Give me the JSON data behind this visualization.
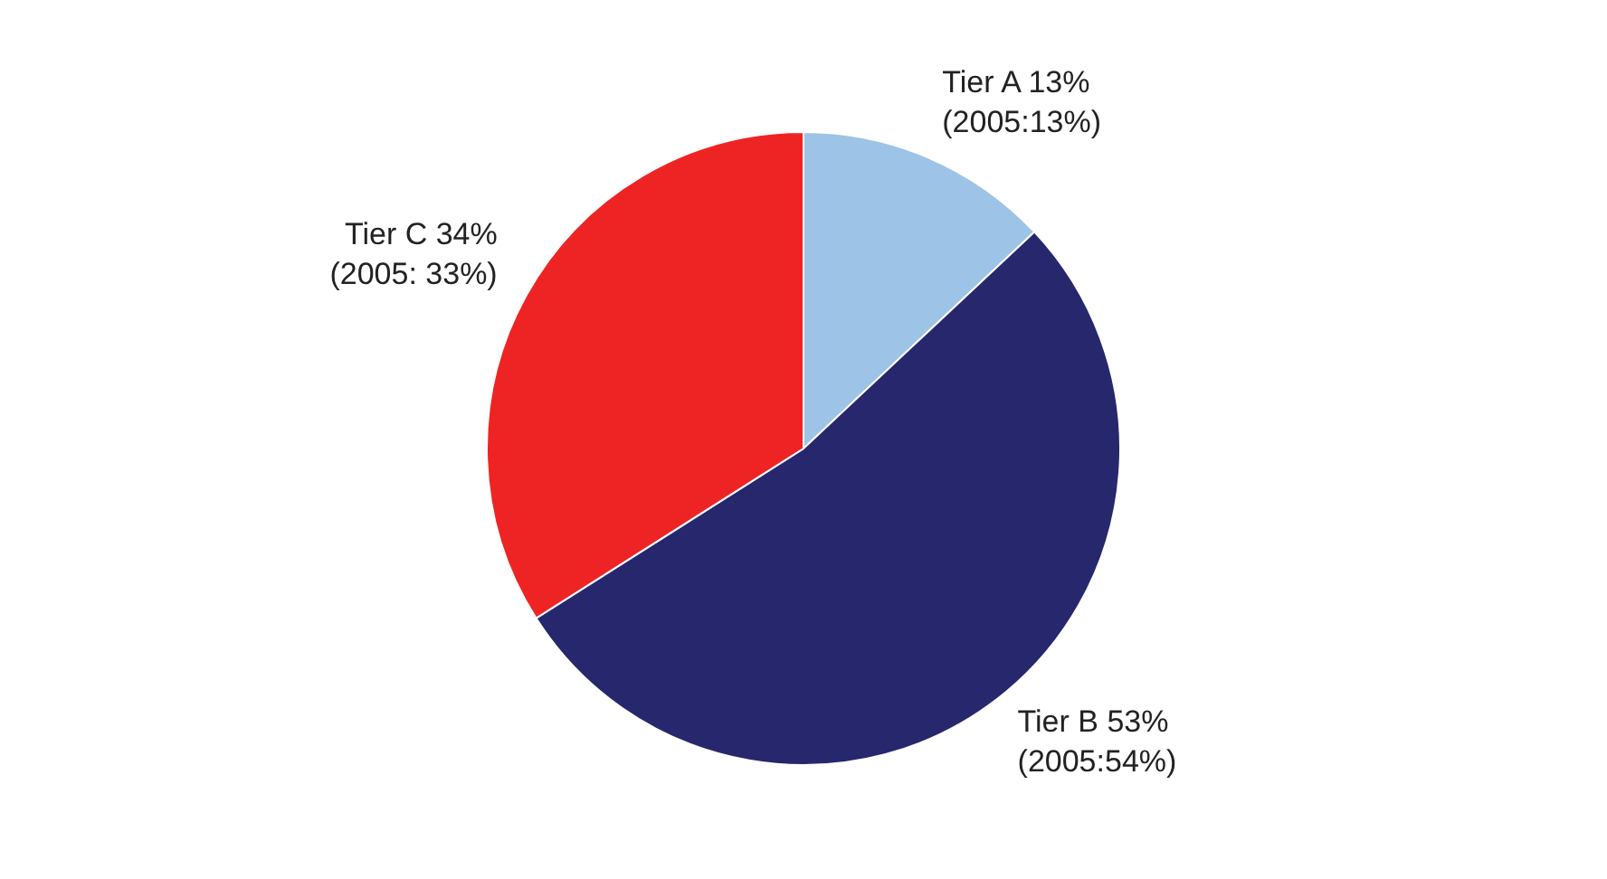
{
  "chart_data": {
    "type": "pie",
    "categories": [
      "Tier A",
      "Tier B",
      "Tier C"
    ],
    "values": [
      13,
      53,
      34
    ],
    "colors": [
      "#9dc3e6",
      "#27276e",
      "#ee2424"
    ],
    "value_labels": [
      "13%",
      "53%",
      "34%"
    ],
    "annotations": [
      "(2005:13%)",
      "(2005:54%)",
      "(2005: 33%)"
    ]
  }
}
